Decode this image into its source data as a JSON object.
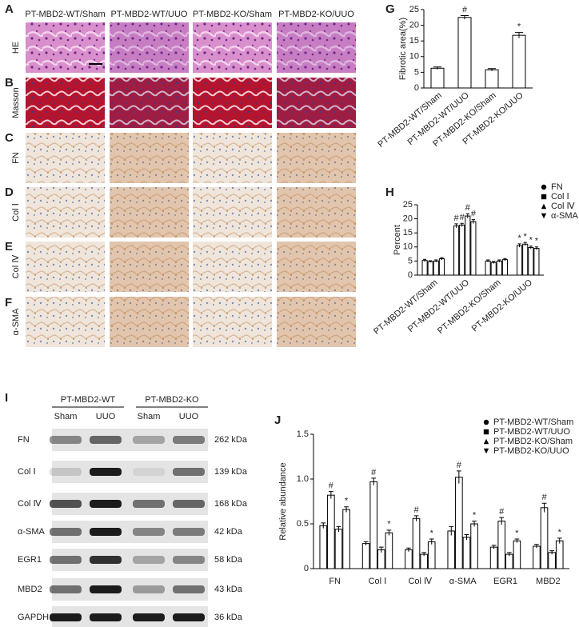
{
  "panel_labels": [
    "A",
    "B",
    "C",
    "D",
    "E",
    "F",
    "G",
    "H",
    "I",
    "J"
  ],
  "histology": {
    "columns": [
      "PT-MBD2-WT/Sham",
      "PT-MBD2-WT/UUO",
      "PT-MBD2-KO/Sham",
      "PT-MBD2-KO/UUO"
    ],
    "rows": [
      "HE",
      "Masson",
      "FN",
      "Col Ⅰ",
      "Col Ⅳ",
      "α-SMA"
    ]
  },
  "blot": {
    "groups": [
      "PT-MBD2-WT",
      "PT-MBD2-KO"
    ],
    "lanes": [
      "Sham",
      "UUO",
      "Sham",
      "UUO"
    ],
    "proteins": [
      "FN",
      "Col Ⅰ",
      "Col Ⅳ",
      "α-SMA",
      "EGR1",
      "MBD2",
      "GAPDH"
    ],
    "sizes": [
      "262 kDa",
      "139 kDa",
      "168 kDa",
      "42 kDa",
      "58 kDa",
      "43 kDa",
      "36 kDa"
    ]
  },
  "chart_data": [
    {
      "type": "bar",
      "ylabel": "Fibrotic area(%)",
      "categories": [
        "PT-MBD2-WT/Sham",
        "PT-MBD2-WT/UUO",
        "PT-MBD2-KO/Sham",
        "PT-MBD2-KO/UUO"
      ],
      "values": [
        6.3,
        22.5,
        5.8,
        16.8
      ],
      "errors": [
        0.4,
        0.6,
        0.4,
        0.9
      ],
      "annotations": [
        null,
        "#",
        null,
        "*"
      ],
      "color": "#000000",
      "fill": "#ffffff",
      "ylim": [
        0,
        25
      ],
      "yticks": [
        0,
        5,
        10,
        15,
        20,
        25
      ]
    },
    {
      "type": "bar",
      "ylabel": "Percent",
      "categories": [
        "PT-MBD2-WT/Sham",
        "PT-MBD2-WT/UUO",
        "PT-MBD2-KO/Sham",
        "PT-MBD2-KO/UUO"
      ],
      "series": [
        {
          "name": "FN",
          "color": "#000000",
          "marker": "circle",
          "values": [
            5.2,
            17.5,
            5.0,
            10.5
          ],
          "errors": [
            0.4,
            0.7,
            0.4,
            0.6
          ]
        },
        {
          "name": "Col Ⅰ",
          "color": "#000000",
          "marker": "square",
          "values": [
            4.8,
            17.8,
            4.5,
            11.0
          ],
          "errors": [
            0.3,
            0.6,
            0.4,
            0.6
          ]
        },
        {
          "name": "Col Ⅳ",
          "color": "#000000",
          "marker": "triangle",
          "values": [
            5.0,
            21.0,
            5.0,
            9.8
          ],
          "errors": [
            0.4,
            0.8,
            0.4,
            0.5
          ]
        },
        {
          "name": "α-SMA",
          "color": "#000000",
          "marker": "triangle-down",
          "values": [
            5.8,
            19.0,
            5.5,
            9.5
          ],
          "errors": [
            0.4,
            0.7,
            0.4,
            0.5
          ]
        }
      ],
      "annotations": [
        null,
        "#",
        null,
        "*"
      ],
      "fill": "#ffffff",
      "ylim": [
        0,
        25
      ],
      "yticks": [
        0,
        5,
        10,
        15,
        20,
        25
      ],
      "legend": "top-right"
    },
    {
      "type": "bar",
      "ylabel": "Relative abundance",
      "categories": [
        "FN",
        "Col Ⅰ",
        "Col Ⅳ",
        "α-SMA",
        "EGR1",
        "MBD2"
      ],
      "series": [
        {
          "name": "PT-MBD2-WT/Sham",
          "color": "#000000",
          "marker": "circle",
          "values": [
            0.48,
            0.28,
            0.21,
            0.42,
            0.24,
            0.25
          ],
          "errors": [
            0.03,
            0.02,
            0.02,
            0.05,
            0.02,
            0.02
          ]
        },
        {
          "name": "PT-MBD2-WT/UUO",
          "color": "#000000",
          "marker": "square",
          "values": [
            0.82,
            0.97,
            0.56,
            1.02,
            0.53,
            0.68
          ],
          "errors": [
            0.04,
            0.04,
            0.03,
            0.07,
            0.04,
            0.05
          ],
          "annotation": "#"
        },
        {
          "name": "PT-MBD2-KO/Sham",
          "color": "#000000",
          "marker": "triangle",
          "values": [
            0.44,
            0.21,
            0.16,
            0.35,
            0.16,
            0.18
          ],
          "errors": [
            0.03,
            0.03,
            0.02,
            0.03,
            0.02,
            0.02
          ]
        },
        {
          "name": "PT-MBD2-KO/UUO",
          "color": "#000000",
          "marker": "triangle-down",
          "values": [
            0.66,
            0.4,
            0.3,
            0.5,
            0.31,
            0.31
          ],
          "errors": [
            0.03,
            0.03,
            0.03,
            0.03,
            0.02,
            0.03
          ],
          "annotation": "*"
        }
      ],
      "fill": "#ffffff",
      "ylim": [
        0,
        1.5
      ],
      "yticks": [
        0,
        0.5,
        {
          "value": 1,
          "label": "1.0"
        },
        1.5
      ],
      "legend": "top-right"
    }
  ]
}
